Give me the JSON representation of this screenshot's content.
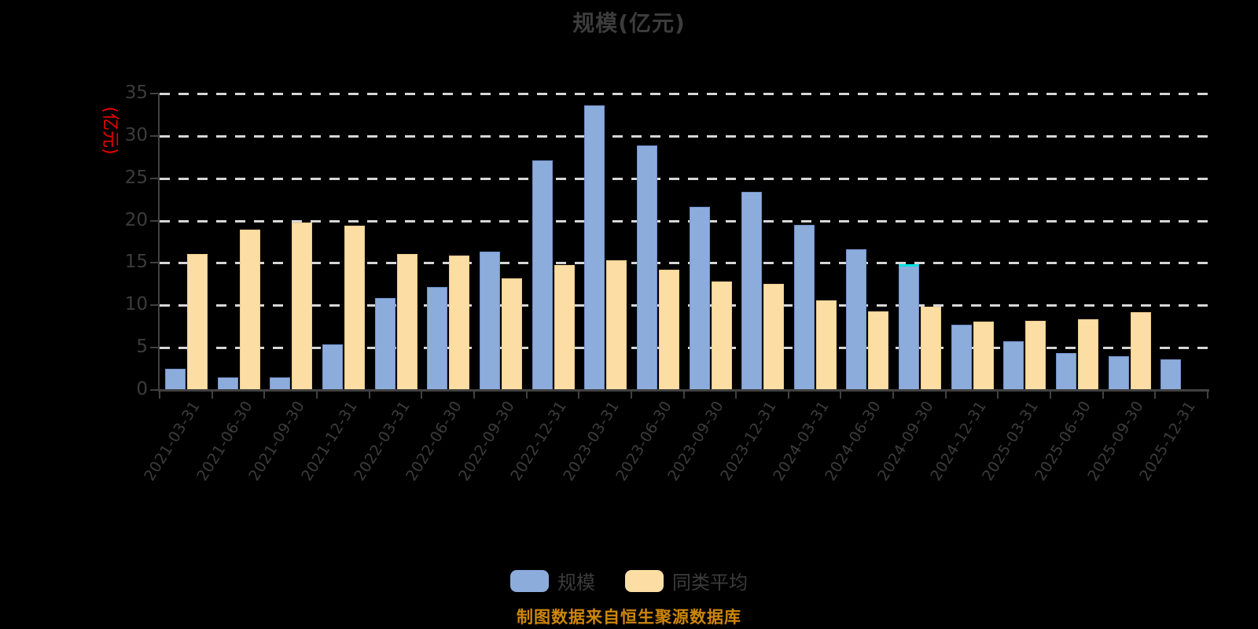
{
  "caption": "制图数据来自恒生聚源数据库",
  "colors": {
    "background": "#000000",
    "title_text": "#3C3C3C",
    "axis_line": "#404040",
    "tick_label": "#3C3C3C",
    "gridline": "#D6D6D6",
    "y_axis_name": "#F00000",
    "caption_text": "#CD860A",
    "series_scale": "#8CACDC",
    "series_peer_average": "#FCDEA4",
    "highlight_cap": "#00E0E0"
  },
  "legend": {
    "items": [
      {
        "label": "规模",
        "color": "#8CACDC"
      },
      {
        "label": "同类平均",
        "color": "#FCDEA4"
      }
    ]
  },
  "chart_data": {
    "type": "bar",
    "title": "规模(亿元)",
    "xlabel": "",
    "ylabel": "(亿元)",
    "ylim": [
      0,
      35
    ],
    "yticks": [
      0,
      5,
      10,
      15,
      20,
      25,
      30,
      35
    ],
    "grid": "horizontal dashed",
    "legend_position": "bottom",
    "categories": [
      "2021-03-31",
      "2021-06-30",
      "2021-09-30",
      "2021-12-31",
      "2022-03-31",
      "2022-06-30",
      "2022-09-30",
      "2022-12-31",
      "2023-03-31",
      "2023-06-30",
      "2023-09-30",
      "2023-12-31",
      "2024-03-31",
      "2024-06-30",
      "2024-09-30",
      "2024-12-31",
      "2025-03-31",
      "2025-06-30",
      "2025-09-30",
      "2025-12-31"
    ],
    "series": [
      {
        "name": "规模",
        "color": "#8CACDC",
        "border_color": "#7191C8",
        "values": [
          2.5,
          1.5,
          1.5,
          5.4,
          10.9,
          12.2,
          16.3,
          27.1,
          33.6,
          28.9,
          21.6,
          23.4,
          19.5,
          16.6,
          14.9,
          7.7,
          5.8,
          4.4,
          4.0,
          3.6
        ]
      },
      {
        "name": "同类平均",
        "color": "#FCDEA4",
        "border_color": "#ECC98E",
        "values": [
          16.1,
          18.9,
          19.8,
          19.4,
          16.1,
          15.9,
          13.2,
          14.8,
          15.3,
          14.2,
          12.8,
          12.5,
          10.6,
          9.3,
          9.8,
          8.1,
          8.2,
          8.4,
          9.2,
          null
        ]
      }
    ],
    "annotations": [
      {
        "type": "bar-top-highlight",
        "series": "规模",
        "category": "2024-09-30",
        "color": "#00E0E0"
      }
    ]
  }
}
